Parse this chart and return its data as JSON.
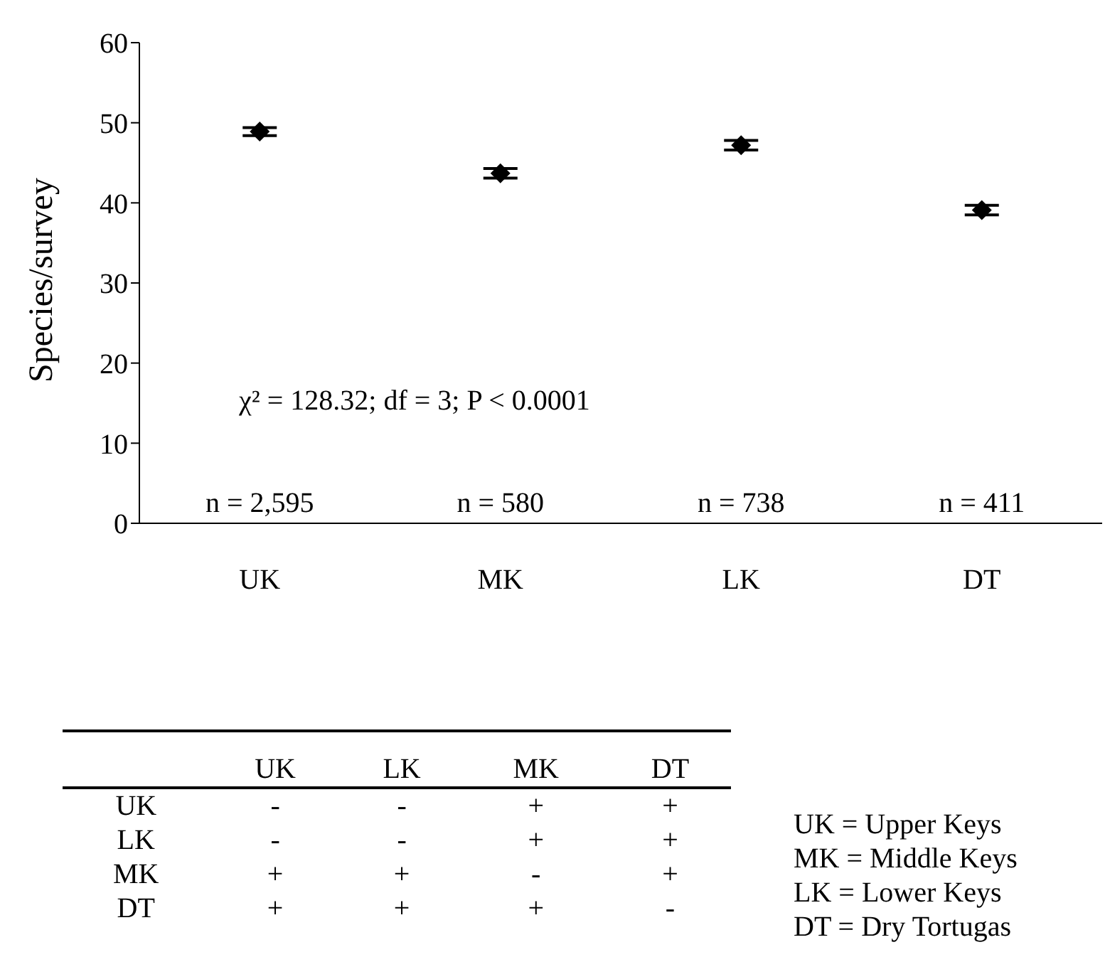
{
  "chart_data": {
    "type": "scatter",
    "ylabel": "Species/survey",
    "categories": [
      "UK",
      "MK",
      "LK",
      "DT"
    ],
    "series": [
      {
        "color": "#000000",
        "values": [
          48.9,
          43.7,
          47.2,
          39.1
        ],
        "errors": [
          0.5,
          0.6,
          0.6,
          0.6
        ]
      }
    ],
    "ylim": [
      0,
      60
    ],
    "yticks": [
      0,
      10,
      20,
      30,
      40,
      50,
      60
    ],
    "marker": "diamond",
    "grid": false,
    "legend": false,
    "annotations": [
      "χ² = 128.32; df = 3; P < 0.0001",
      "n = 2,595",
      "n = 580",
      "n = 738",
      "n = 411",
      "\tUK\tLK\tMK\tDT",
      "UK\t-\t-\t+\t+",
      "LK\t-\t-\t+\t+",
      "MK\t+\t+\t-\t+",
      "DT\t+\t+\t+\t-",
      "UK = Upper Keys",
      "MK = Middle Keys",
      "LK = Lower Keys",
      "DT = Dry Tortugas"
    ]
  }
}
